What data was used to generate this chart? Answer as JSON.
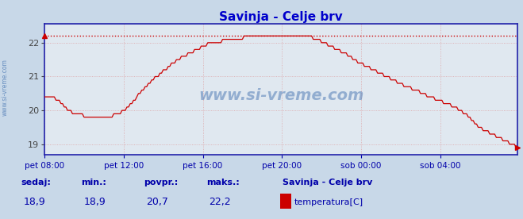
{
  "title": "Savinja - Celje brv",
  "title_color": "#0000cc",
  "bg_color": "#c8d8e8",
  "plot_bg_color": "#e0e8f0",
  "grid_color": "#dd8888",
  "line_color": "#cc0000",
  "axis_color": "#2222aa",
  "max_line_color": "#cc0000",
  "ylim": [
    18.7,
    22.55
  ],
  "yticks": [
    19,
    20,
    21,
    22
  ],
  "ylabel_color": "#444444",
  "xticklabels": [
    "pet 08:00",
    "pet 12:00",
    "pet 16:00",
    "pet 20:00",
    "sob 00:00",
    "sob 04:00"
  ],
  "watermark": "www.si-vreme.com",
  "watermark_color": "#3366aa",
  "sedaj_label": "sedaj:",
  "sedaj_val": "18,9",
  "min_label": "min.:",
  "min_val": "18,9",
  "povpr_label": "povpr.:",
  "povpr_val": "20,7",
  "maks_label": "maks.:",
  "maks_val": "22,2",
  "legend_title": "Savinja - Celje brv",
  "legend_series": "temperatura[C]",
  "legend_color": "#cc0000",
  "max_val": 22.2,
  "n_points": 288,
  "label_color": "#0000aa",
  "tick_positions": [
    0,
    48,
    96,
    144,
    192,
    240
  ]
}
